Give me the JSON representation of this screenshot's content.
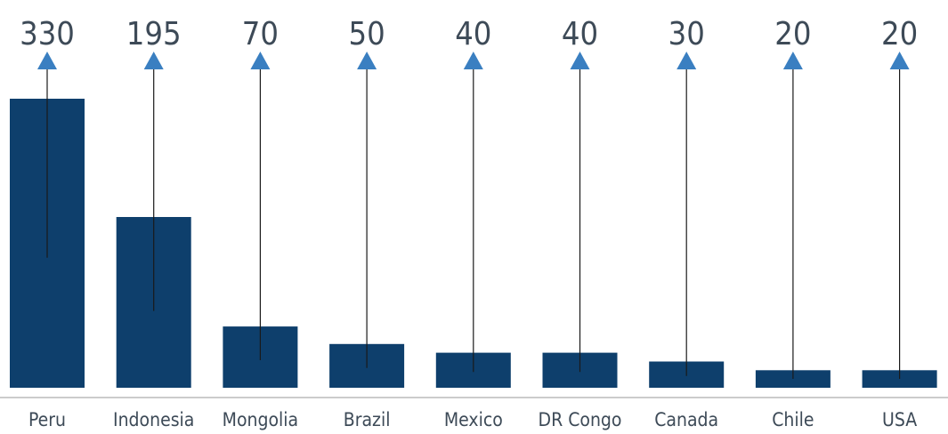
{
  "chart_data": {
    "type": "bar",
    "title": "",
    "xlabel": "",
    "ylabel": "",
    "categories": [
      "Peru",
      "Indonesia",
      "Mongolia",
      "Brazil",
      "Mexico",
      "DR Congo",
      "Canada",
      "Chile",
      "USA"
    ],
    "values": [
      330,
      195,
      70,
      50,
      40,
      40,
      30,
      20,
      20
    ],
    "ylim": [
      0,
      330
    ],
    "grid": false,
    "legend": "none",
    "colors": {
      "bar": "#0e3f6c",
      "arrow": "#3a7fc1",
      "pointer_line": "#1a1a1a",
      "text": "#3d4a57",
      "axis": "#9a9a9a"
    }
  }
}
